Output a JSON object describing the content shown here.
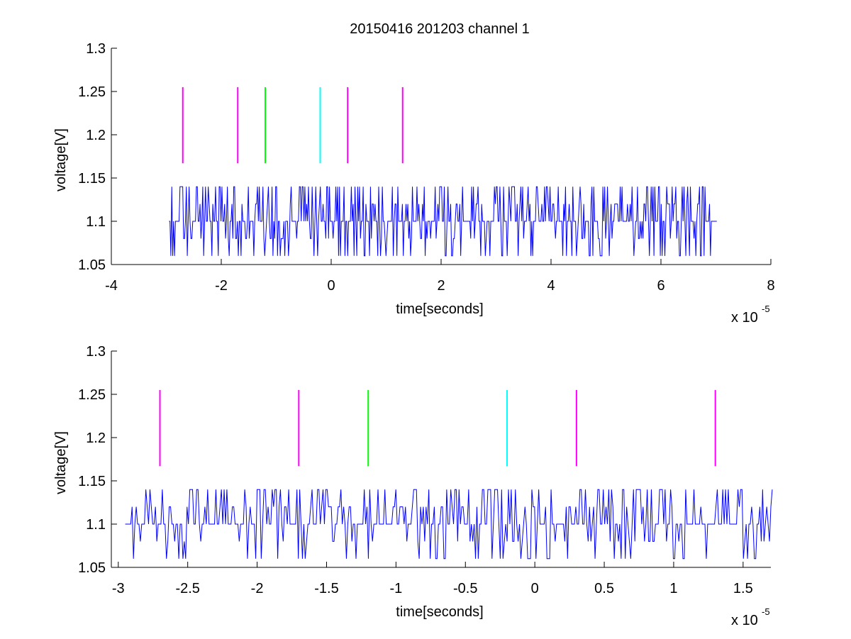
{
  "figure": {
    "title": "20150416 201203 channel 1"
  },
  "chart_data": [
    {
      "type": "line",
      "title": "20150416 201203 channel 1",
      "xlabel": "time[seconds]",
      "ylabel": "voltage[V]",
      "x_exponent_label": "x 10",
      "x_exponent": "-5",
      "xlim": [
        -4,
        8
      ],
      "ylim": [
        1.05,
        1.3
      ],
      "x_ticks": [
        -4,
        -2,
        0,
        2,
        4,
        6,
        8
      ],
      "x_tick_labels": [
        "-4",
        "-2",
        "0",
        "2",
        "4",
        "6",
        "8"
      ],
      "y_ticks": [
        1.05,
        1.1,
        1.15,
        1.2,
        1.25,
        1.3
      ],
      "y_tick_labels": [
        "1.05",
        "1.1",
        "1.15",
        "1.2",
        "1.25",
        "1.3"
      ],
      "grid": false,
      "signal": {
        "color": "#0000ff",
        "x_range": [
          -2.95,
          7.0
        ],
        "levels": [
          1.06,
          1.08,
          1.1,
          1.12,
          1.14
        ],
        "baseline": 1.1,
        "segments": 600,
        "seed": 7
      },
      "markers": [
        {
          "x": -2.7,
          "y_range": [
            1.167,
            1.255
          ],
          "color": "#ff00ff"
        },
        {
          "x": -1.7,
          "y_range": [
            1.167,
            1.255
          ],
          "color": "#ff00ff"
        },
        {
          "x": -1.2,
          "y_range": [
            1.167,
            1.255
          ],
          "color": "#00ff00"
        },
        {
          "x": -0.2,
          "y_range": [
            1.167,
            1.255
          ],
          "color": "#00ffff"
        },
        {
          "x": 0.3,
          "y_range": [
            1.167,
            1.255
          ],
          "color": "#ff00ff"
        },
        {
          "x": 1.3,
          "y_range": [
            1.167,
            1.255
          ],
          "color": "#ff00ff"
        }
      ]
    },
    {
      "type": "line",
      "title": "",
      "xlabel": "time[seconds]",
      "ylabel": "voltage[V]",
      "x_exponent_label": "x 10",
      "x_exponent": "-5",
      "xlim": [
        -3.05,
        1.7
      ],
      "ylim": [
        1.05,
        1.3
      ],
      "x_ticks": [
        -3,
        -2.5,
        -2,
        -1.5,
        -1,
        -0.5,
        0,
        0.5,
        1,
        1.5
      ],
      "x_tick_labels": [
        "-3",
        "-2.5",
        "-2",
        "-1.5",
        "-1",
        "-0.5",
        "0",
        "0.5",
        "1",
        "1.5"
      ],
      "y_ticks": [
        1.05,
        1.1,
        1.15,
        1.2,
        1.25,
        1.3
      ],
      "y_tick_labels": [
        "1.05",
        "1.1",
        "1.15",
        "1.2",
        "1.25",
        "1.3"
      ],
      "grid": false,
      "signal": {
        "color": "#0000ff",
        "x_range": [
          -2.95,
          1.7
        ],
        "levels": [
          1.06,
          1.08,
          1.1,
          1.12,
          1.14
        ],
        "baseline": 1.1,
        "segments": 470,
        "seed": 11
      },
      "markers": [
        {
          "x": -2.7,
          "y_range": [
            1.167,
            1.255
          ],
          "color": "#ff00ff"
        },
        {
          "x": -1.7,
          "y_range": [
            1.167,
            1.255
          ],
          "color": "#ff00ff"
        },
        {
          "x": -1.2,
          "y_range": [
            1.167,
            1.255
          ],
          "color": "#00ff00"
        },
        {
          "x": -0.2,
          "y_range": [
            1.167,
            1.255
          ],
          "color": "#00ffff"
        },
        {
          "x": 0.3,
          "y_range": [
            1.167,
            1.255
          ],
          "color": "#ff00ff"
        },
        {
          "x": 1.3,
          "y_range": [
            1.167,
            1.255
          ],
          "color": "#ff00ff"
        }
      ]
    }
  ]
}
